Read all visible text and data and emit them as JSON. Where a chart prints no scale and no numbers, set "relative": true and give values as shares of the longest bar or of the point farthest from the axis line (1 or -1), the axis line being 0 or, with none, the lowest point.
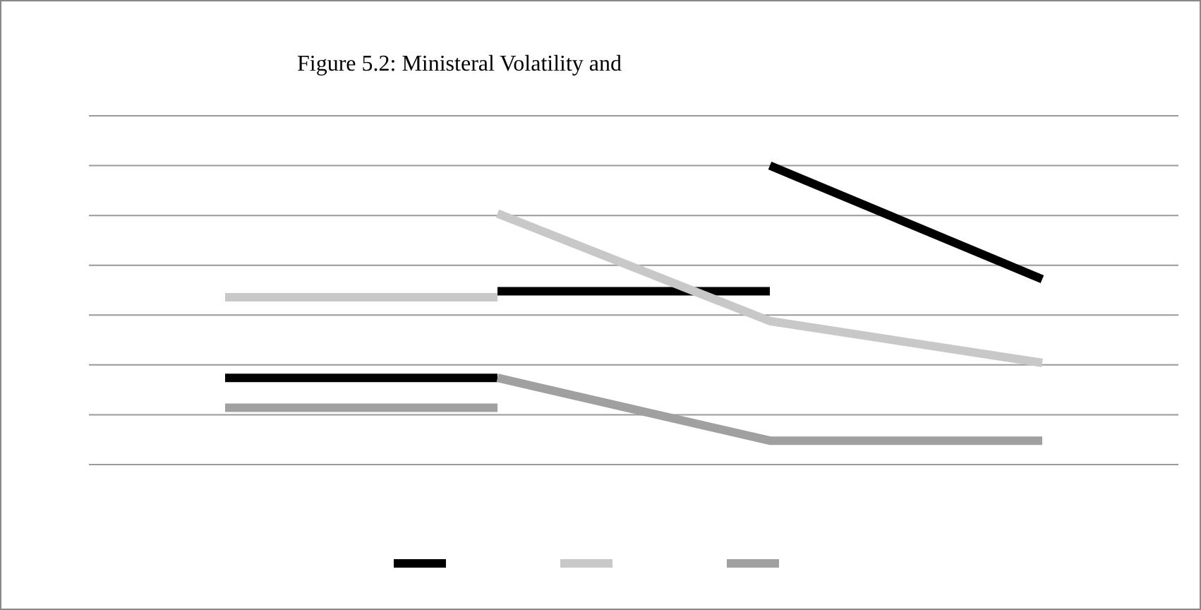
{
  "chart_data": {
    "type": "line",
    "title": "Figure 5.2: Ministeral Volatility and",
    "categories": [
      null,
      null,
      null,
      null
    ],
    "relative": true,
    "grid": true,
    "marker": "none",
    "line_style": "solid",
    "series": [
      {
        "color": "#000000",
        "values": [
          0.29,
          0.29,
          null,
          null
        ]
      },
      {
        "color": "#000000",
        "values": [
          null,
          0.58,
          0.58,
          null
        ]
      },
      {
        "color": "#000000",
        "values": [
          null,
          null,
          1.0,
          0.62
        ]
      },
      {
        "color": "#c8c8c8",
        "values": [
          0.56,
          0.56,
          null,
          null
        ]
      },
      {
        "color": "#c8c8c8",
        "values": [
          null,
          0.84,
          0.48,
          0.34
        ]
      },
      {
        "color": "#a0a0a0",
        "values": [
          0.19,
          0.19,
          null,
          null
        ]
      },
      {
        "color": "#a0a0a0",
        "values": [
          null,
          0.29,
          0.08,
          0.08
        ]
      }
    ]
  }
}
